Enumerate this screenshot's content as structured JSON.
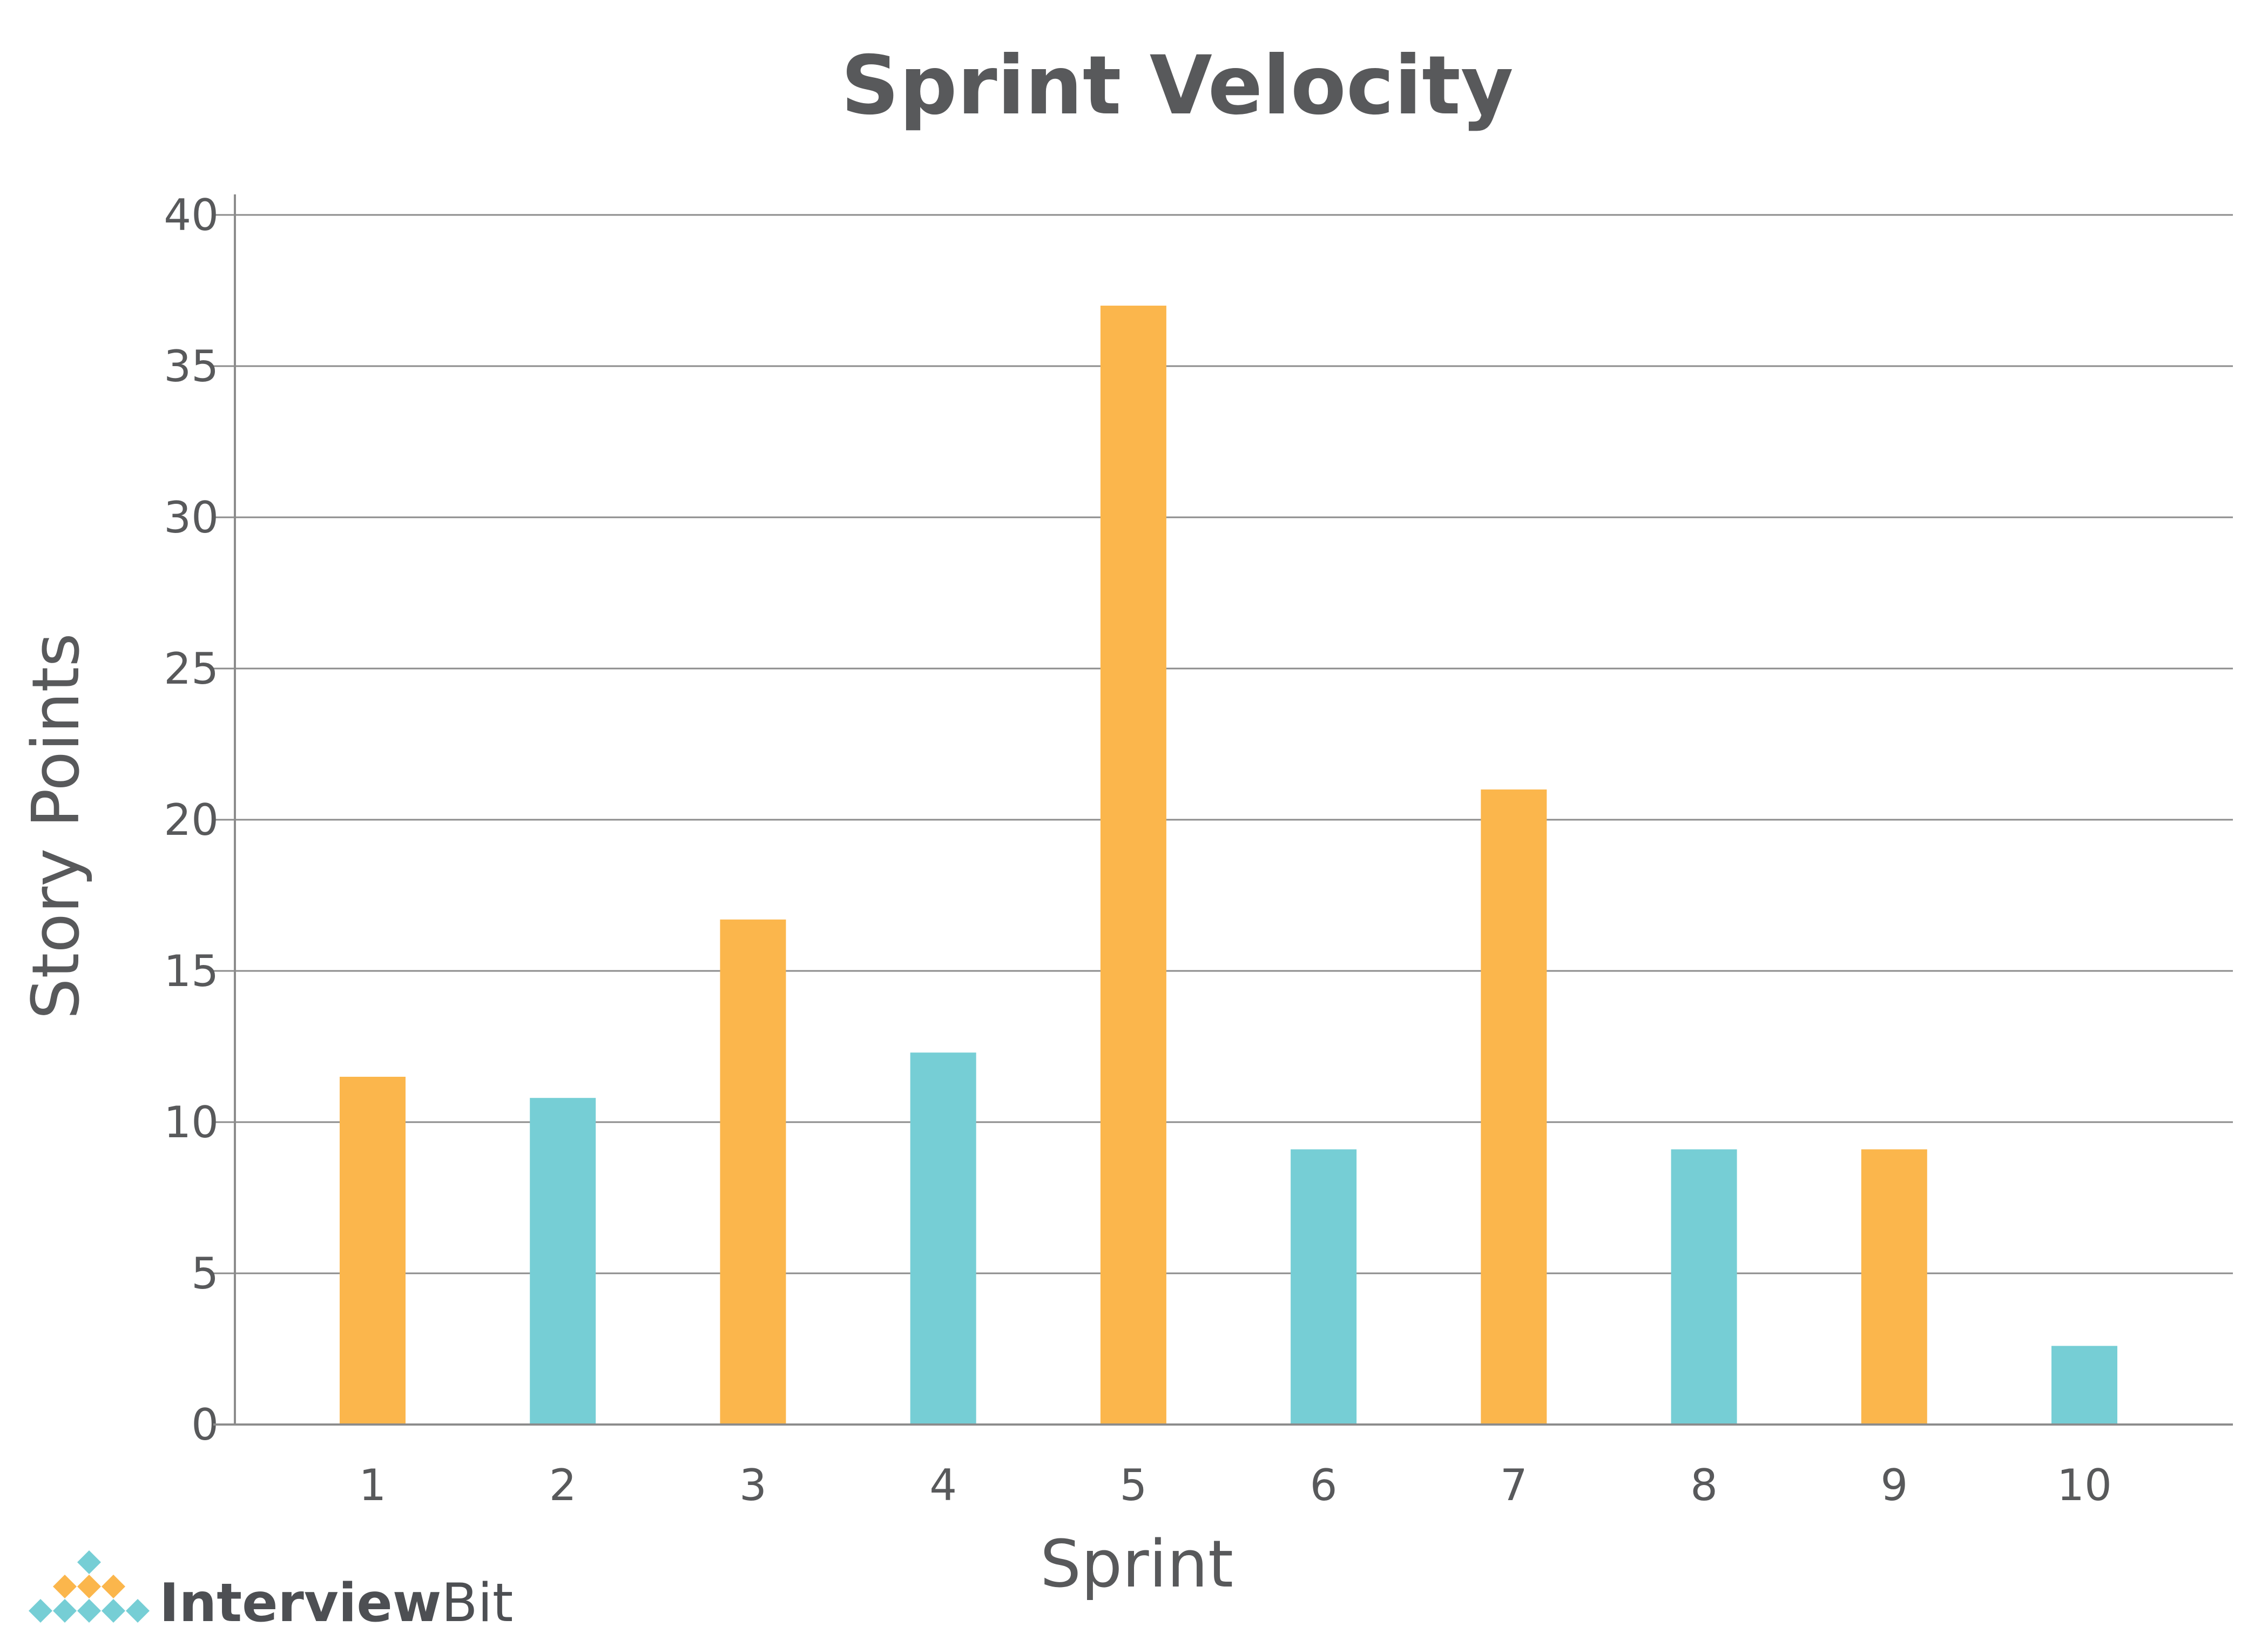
{
  "chart_data": {
    "type": "bar",
    "title": "Sprint Velocity",
    "xlabel": "Sprint",
    "ylabel": "Story Points",
    "categories": [
      "1",
      "2",
      "3",
      "4",
      "5",
      "6",
      "7",
      "8",
      "9",
      "10"
    ],
    "values": [
      11.5,
      10.8,
      16.7,
      12.3,
      37.0,
      9.1,
      21.0,
      9.1,
      9.1,
      2.6
    ],
    "ylim": [
      0,
      40
    ],
    "yticks": [
      0,
      5,
      10,
      15,
      20,
      25,
      30,
      35,
      40
    ],
    "grid": true,
    "legend": "none",
    "bar_colors": [
      "#fbb64c",
      "#76ced5",
      "#fbb64c",
      "#76ced5",
      "#fbb64c",
      "#76ced5",
      "#fbb64c",
      "#76ced5",
      "#fbb64c",
      "#76ced5"
    ]
  },
  "colors": {
    "orange": "#fbb64c",
    "teal": "#76ced5",
    "text": "#58595b",
    "grid": "#8c8c8c"
  },
  "brand": {
    "logo_bold": "Interview",
    "logo_light": "Bit",
    "logo_icon": "interviewbit-diamond-logo-icon"
  }
}
